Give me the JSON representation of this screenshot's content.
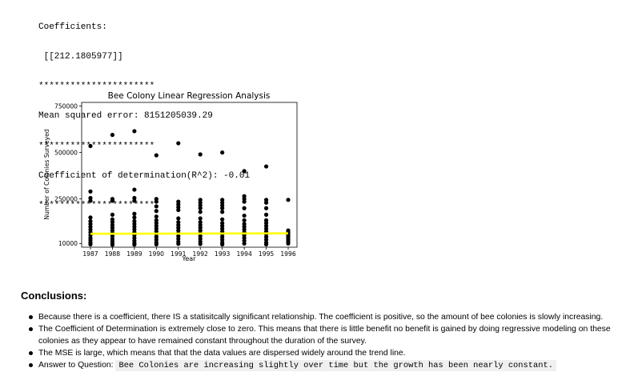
{
  "output": {
    "coef_label": "Coefficients:",
    "coef_value": " [[212.1805977]]",
    "separator1": "**********************",
    "mse": "Mean squared error: 8151205039.29",
    "separator2": "**********************",
    "r2": "Coefficient of determination(R^2): -0.01",
    "separator3": "**********************"
  },
  "chart_data": {
    "type": "scatter",
    "title": "Bee Colony Linear Regression Analysis",
    "xlabel": "Year",
    "ylabel": "Number of Colonies Surveyed",
    "x_ticks": [
      "1987",
      "1988",
      "1989",
      "1990",
      "1991",
      "1992",
      "1993",
      "1994",
      "1995",
      "1996"
    ],
    "y_ticks": [
      {
        "value": 10000,
        "label": "10000"
      },
      {
        "value": 250000,
        "label": "250000"
      },
      {
        "value": 500000,
        "label": "500000"
      },
      {
        "value": 750000,
        "label": "750000"
      }
    ],
    "xlim": [
      1986.6,
      1996.4
    ],
    "ylim": [
      -10000,
      770000
    ],
    "points": [
      [
        1987,
        535000
      ],
      [
        1987,
        290000
      ],
      [
        1987,
        255000
      ],
      [
        1987,
        240000
      ],
      [
        1987,
        150000
      ],
      [
        1987,
        130000
      ],
      [
        1987,
        115000
      ],
      [
        1987,
        100000
      ],
      [
        1987,
        85000
      ],
      [
        1987,
        70000
      ],
      [
        1987,
        55000
      ],
      [
        1987,
        40000
      ],
      [
        1987,
        28000
      ],
      [
        1987,
        15000
      ],
      [
        1987,
        5000
      ],
      [
        1988,
        595000
      ],
      [
        1988,
        250000
      ],
      [
        1988,
        240000
      ],
      [
        1988,
        165000
      ],
      [
        1988,
        140000
      ],
      [
        1988,
        125000
      ],
      [
        1988,
        110000
      ],
      [
        1988,
        95000
      ],
      [
        1988,
        80000
      ],
      [
        1988,
        65000
      ],
      [
        1988,
        50000
      ],
      [
        1988,
        35000
      ],
      [
        1988,
        22000
      ],
      [
        1988,
        10000
      ],
      [
        1988,
        3000
      ],
      [
        1989,
        615000
      ],
      [
        1989,
        300000
      ],
      [
        1989,
        255000
      ],
      [
        1989,
        240000
      ],
      [
        1989,
        170000
      ],
      [
        1989,
        150000
      ],
      [
        1989,
        130000
      ],
      [
        1989,
        115000
      ],
      [
        1989,
        100000
      ],
      [
        1989,
        85000
      ],
      [
        1989,
        70000
      ],
      [
        1989,
        55000
      ],
      [
        1989,
        40000
      ],
      [
        1989,
        25000
      ],
      [
        1989,
        12000
      ],
      [
        1989,
        4000
      ],
      [
        1990,
        485000
      ],
      [
        1990,
        250000
      ],
      [
        1990,
        235000
      ],
      [
        1990,
        210000
      ],
      [
        1990,
        185000
      ],
      [
        1990,
        155000
      ],
      [
        1990,
        135000
      ],
      [
        1990,
        120000
      ],
      [
        1990,
        105000
      ],
      [
        1990,
        90000
      ],
      [
        1990,
        75000
      ],
      [
        1990,
        60000
      ],
      [
        1990,
        45000
      ],
      [
        1990,
        30000
      ],
      [
        1990,
        15000
      ],
      [
        1990,
        5000
      ],
      [
        1991,
        550000
      ],
      [
        1991,
        235000
      ],
      [
        1991,
        220000
      ],
      [
        1991,
        205000
      ],
      [
        1991,
        190000
      ],
      [
        1991,
        145000
      ],
      [
        1991,
        125000
      ],
      [
        1991,
        110000
      ],
      [
        1991,
        95000
      ],
      [
        1991,
        80000
      ],
      [
        1991,
        65000
      ],
      [
        1991,
        50000
      ],
      [
        1991,
        35000
      ],
      [
        1991,
        20000
      ],
      [
        1991,
        8000
      ],
      [
        1992,
        490000
      ],
      [
        1992,
        245000
      ],
      [
        1992,
        230000
      ],
      [
        1992,
        215000
      ],
      [
        1992,
        200000
      ],
      [
        1992,
        180000
      ],
      [
        1992,
        145000
      ],
      [
        1992,
        125000
      ],
      [
        1992,
        110000
      ],
      [
        1992,
        95000
      ],
      [
        1992,
        80000
      ],
      [
        1992,
        65000
      ],
      [
        1992,
        50000
      ],
      [
        1992,
        35000
      ],
      [
        1992,
        20000
      ],
      [
        1992,
        7000
      ],
      [
        1993,
        500000
      ],
      [
        1993,
        245000
      ],
      [
        1993,
        230000
      ],
      [
        1993,
        215000
      ],
      [
        1993,
        200000
      ],
      [
        1993,
        180000
      ],
      [
        1993,
        140000
      ],
      [
        1993,
        120000
      ],
      [
        1993,
        105000
      ],
      [
        1993,
        90000
      ],
      [
        1993,
        75000
      ],
      [
        1993,
        60000
      ],
      [
        1993,
        45000
      ],
      [
        1993,
        30000
      ],
      [
        1993,
        15000
      ],
      [
        1993,
        5000
      ],
      [
        1994,
        400000
      ],
      [
        1994,
        265000
      ],
      [
        1994,
        250000
      ],
      [
        1994,
        235000
      ],
      [
        1994,
        200000
      ],
      [
        1994,
        160000
      ],
      [
        1994,
        135000
      ],
      [
        1994,
        115000
      ],
      [
        1994,
        100000
      ],
      [
        1994,
        85000
      ],
      [
        1994,
        70000
      ],
      [
        1994,
        55000
      ],
      [
        1994,
        40000
      ],
      [
        1994,
        25000
      ],
      [
        1994,
        10000
      ],
      [
        1995,
        425000
      ],
      [
        1995,
        245000
      ],
      [
        1995,
        230000
      ],
      [
        1995,
        200000
      ],
      [
        1995,
        165000
      ],
      [
        1995,
        135000
      ],
      [
        1995,
        120000
      ],
      [
        1995,
        105000
      ],
      [
        1995,
        90000
      ],
      [
        1995,
        75000
      ],
      [
        1995,
        60000
      ],
      [
        1995,
        45000
      ],
      [
        1995,
        30000
      ],
      [
        1995,
        15000
      ],
      [
        1995,
        5000
      ],
      [
        1996,
        245000
      ],
      [
        1996,
        80000
      ],
      [
        1996,
        70000
      ],
      [
        1996,
        60000
      ],
      [
        1996,
        50000
      ],
      [
        1996,
        40000
      ],
      [
        1996,
        30000
      ],
      [
        1996,
        20000
      ],
      [
        1996,
        10000
      ]
    ],
    "regression": {
      "x": [
        1987,
        1996
      ],
      "y": [
        62500,
        64400
      ],
      "color": "#ffff00"
    },
    "marker_color": "#000000"
  },
  "conclusions": {
    "heading": "Conclusions:",
    "bullets": [
      "Because there is a coefficient, there IS a statisitcally significant relationship. The coefficient is positive, so the amount of bee colonies is slowly increasing.",
      "The Coefficient of Determination is extremely close to zero. This means that there is little benefit no benefit is gained by doing regressive modeling on these colonies as they appear to have remained constant throughout the duration of the survey.",
      "The MSE is large, which means that that the data values are dispersed widely around the trend line."
    ],
    "answer_label": "Answer to Question:",
    "answer_code": "Bee Colonies are increasing slightly over time but the growth has been nearly constant."
  }
}
